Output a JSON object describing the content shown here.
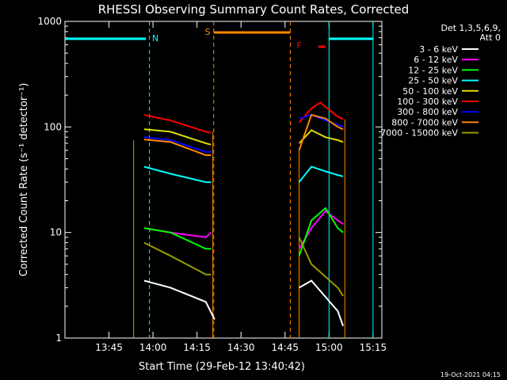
{
  "chart_data": {
    "type": "line",
    "title": "RHESSI Observing Summary Count Rates, Corrected",
    "xlabel": "Start Time (29-Feb-12 13:40:42)",
    "ylabel": "Corrected Count Rate (s⁻¹ detector⁻¹)",
    "yscale": "log",
    "ylim": [
      1,
      1000
    ],
    "xlim_minutes": [
      13.5,
      15.3
    ],
    "x_ticks": [
      "13:45",
      "14:00",
      "14:15",
      "14:30",
      "14:45",
      "15:00",
      "15:15"
    ],
    "y_ticks": [
      "1",
      "10",
      "100",
      "1000"
    ],
    "footer": "19-Oct-2021 04:15",
    "legend": {
      "header1": "Det 1,3,5,6,9,",
      "header2": "Att 0",
      "placement": "right"
    },
    "series": [
      {
        "name": "3 - 6 keV",
        "color": "#ffffff",
        "values": [
          [
            13.95,
            3.5
          ],
          [
            14.1,
            3.0
          ],
          [
            14.3,
            2.2
          ],
          [
            14.35,
            1.5
          ],
          [
            14.83,
            3.0
          ],
          [
            14.9,
            3.5
          ],
          [
            15.05,
            1.8
          ],
          [
            15.08,
            1.3
          ]
        ]
      },
      {
        "name": "6 - 12 keV",
        "color": "#ff00ff",
        "values": [
          [
            13.95,
            11
          ],
          [
            14.1,
            10
          ],
          [
            14.3,
            9
          ],
          [
            14.33,
            10
          ],
          [
            14.83,
            7
          ],
          [
            14.9,
            11
          ],
          [
            14.98,
            16
          ],
          [
            15.05,
            13
          ],
          [
            15.08,
            12
          ]
        ]
      },
      {
        "name": "12 - 25 keV",
        "color": "#00ff00",
        "values": [
          [
            13.95,
            11
          ],
          [
            14.1,
            10
          ],
          [
            14.3,
            7
          ],
          [
            14.33,
            7
          ],
          [
            14.83,
            6
          ],
          [
            14.9,
            13
          ],
          [
            14.98,
            17
          ],
          [
            15.05,
            11
          ],
          [
            15.08,
            10
          ]
        ]
      },
      {
        "name": "25 - 50 keV",
        "color": "#00ffff",
        "values": [
          [
            13.95,
            42
          ],
          [
            14.1,
            36
          ],
          [
            14.3,
            30
          ],
          [
            14.33,
            30
          ],
          [
            14.83,
            30
          ],
          [
            14.9,
            42
          ],
          [
            14.98,
            38
          ],
          [
            15.05,
            35
          ],
          [
            15.08,
            34
          ]
        ]
      },
      {
        "name": "50 - 100 keV",
        "color": "#dddd00",
        "values": [
          [
            13.95,
            95
          ],
          [
            14.1,
            90
          ],
          [
            14.3,
            70
          ],
          [
            14.33,
            68
          ],
          [
            14.83,
            70
          ],
          [
            14.9,
            93
          ],
          [
            14.98,
            80
          ],
          [
            15.05,
            75
          ],
          [
            15.08,
            72
          ]
        ]
      },
      {
        "name": "100 - 300 keV",
        "color": "#ff0000",
        "values": [
          [
            13.95,
            130
          ],
          [
            14.1,
            115
          ],
          [
            14.3,
            90
          ],
          [
            14.33,
            88
          ],
          [
            14.83,
            110
          ],
          [
            14.9,
            150
          ],
          [
            14.95,
            170
          ],
          [
            15.05,
            125
          ],
          [
            15.08,
            118
          ]
        ]
      },
      {
        "name": "300 - 800 keV",
        "color": "#0000ff",
        "values": [
          [
            13.95,
            80
          ],
          [
            14.1,
            75
          ],
          [
            14.3,
            58
          ],
          [
            14.33,
            58
          ],
          [
            14.83,
            120
          ],
          [
            14.9,
            130
          ],
          [
            14.98,
            115
          ],
          [
            15.05,
            105
          ],
          [
            15.08,
            100
          ]
        ]
      },
      {
        "name": "800 - 7000 keV",
        "color": "#ff8800",
        "values": [
          [
            13.95,
            76
          ],
          [
            14.1,
            72
          ],
          [
            14.3,
            54
          ],
          [
            14.33,
            54
          ],
          [
            14.83,
            60
          ],
          [
            14.9,
            130
          ],
          [
            14.98,
            120
          ],
          [
            15.05,
            100
          ],
          [
            15.08,
            95
          ]
        ]
      },
      {
        "name": "7000 - 15000 keV",
        "color": "#999900",
        "values": [
          [
            13.95,
            8
          ],
          [
            14.1,
            6
          ],
          [
            14.3,
            4
          ],
          [
            14.33,
            4
          ],
          [
            14.83,
            9
          ],
          [
            14.9,
            5
          ],
          [
            15.05,
            3
          ],
          [
            15.08,
            2.5
          ]
        ]
      }
    ],
    "markers": [
      {
        "label": "N",
        "color": "#00ffff"
      },
      {
        "label": "S",
        "color": "#ff8800"
      },
      {
        "label": "F",
        "color": "#ff0000"
      }
    ]
  }
}
